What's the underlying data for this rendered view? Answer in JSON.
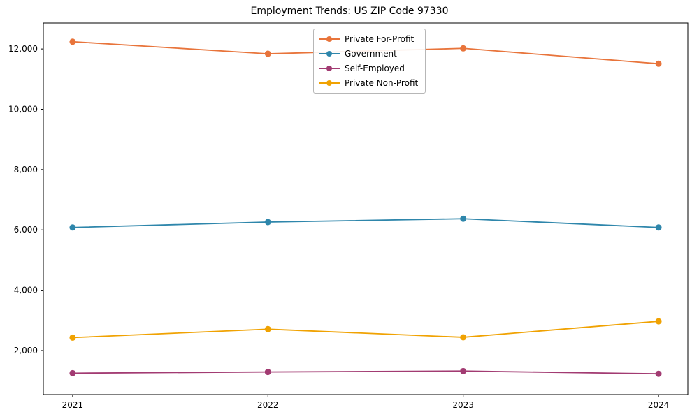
{
  "title": "Employment Trends: US ZIP Code 97330",
  "chart_data": {
    "type": "line",
    "title": "Employment Trends: US ZIP Code 97330",
    "xlabel": "",
    "ylabel": "",
    "x": [
      2021,
      2022,
      2023,
      2024
    ],
    "xtick_labels": [
      "2021",
      "2022",
      "2023",
      "2024"
    ],
    "yticks": [
      2000,
      4000,
      6000,
      8000,
      10000,
      12000
    ],
    "ytick_labels": [
      "2,000",
      "4,000",
      "6,000",
      "8,000",
      "10,000",
      "12,000"
    ],
    "xlim": [
      2020.85,
      2024.15
    ],
    "ylim": [
      540,
      12860
    ],
    "grid": false,
    "legend_position": "upper center-left",
    "marker": "circle",
    "series": [
      {
        "name": "Private For-Profit",
        "color": "#E8743B",
        "values": [
          12240,
          11840,
          12020,
          11510
        ]
      },
      {
        "name": "Government",
        "color": "#2E86AB",
        "values": [
          6080,
          6260,
          6370,
          6080
        ]
      },
      {
        "name": "Self-Employed",
        "color": "#A23B72",
        "values": [
          1250,
          1290,
          1320,
          1230
        ]
      },
      {
        "name": "Private Non-Profit",
        "color": "#F0A202",
        "values": [
          2430,
          2710,
          2440,
          2970
        ]
      }
    ]
  }
}
